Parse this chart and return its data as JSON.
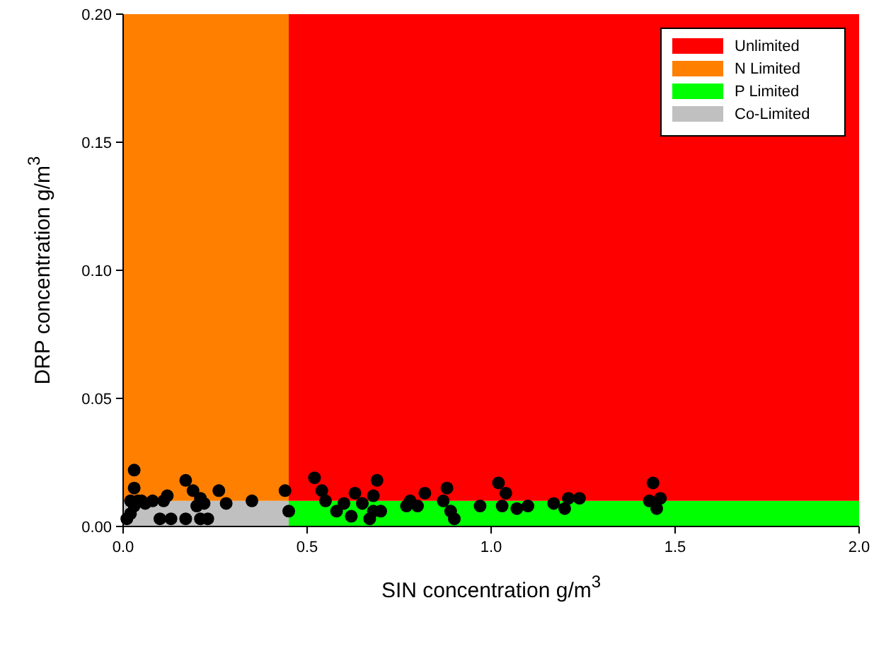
{
  "chart_data": {
    "type": "scatter",
    "xlabel": "SIN concentration g/m$^{3}$",
    "ylabel": "DRP concentration g/m$^{3}$",
    "xlim": [
      0,
      2
    ],
    "xticks": [
      {
        "value": 0,
        "label": "0.0"
      },
      {
        "value": 0.5,
        "label": "0.5"
      },
      {
        "value": 1,
        "label": "1.0"
      },
      {
        "value": 1.5,
        "label": "1.5"
      },
      {
        "value": 2,
        "label": "2.0"
      }
    ],
    "ylim": [
      0,
      0.2
    ],
    "yticks": [
      {
        "value": 0,
        "label": "0.00"
      },
      {
        "value": 0.05,
        "label": "0.05"
      },
      {
        "value": 0.1,
        "label": "0.10"
      },
      {
        "value": 0.15,
        "label": "0.15"
      },
      {
        "value": 0.2,
        "label": "0.20"
      }
    ],
    "x": [
      0,
      0.45,
      0.45,
      2
    ],
    "grid": false,
    "legend": "top right",
    "marker": "circle",
    "stacked": true,
    "series": [
      {
        "type": "area",
        "name": "Co-Limited",
        "color": "#c0c0c0",
        "marker": "none",
        "values": [
          0.01,
          0.01,
          null,
          null
        ]
      },
      {
        "type": "area",
        "name": "P Limited",
        "color": "#00ff00",
        "marker": "none",
        "values": [
          null,
          null,
          0.01,
          0.01
        ]
      },
      {
        "type": "area",
        "name": "N Limited",
        "color": "#ff8000",
        "marker": "none",
        "values": [
          0.19,
          0.19,
          null,
          null
        ]
      },
      {
        "type": "area",
        "name": "Unlimited",
        "color": "#ff0000",
        "marker": "none",
        "values": [
          null,
          null,
          0.19,
          0.19
        ]
      },
      {
        "color": "#000000",
        "x": [
          0.01,
          0.02,
          0.03,
          0.03,
          0.03,
          0.05,
          0.06,
          0.08,
          0.1,
          0.11,
          0.12,
          0.13,
          0.17,
          0.17,
          0.19,
          0.2,
          0.21,
          0.22,
          0.23,
          0.26,
          0.28,
          0.35,
          0.44,
          0.45,
          0.04,
          0.02,
          0.21,
          0.52,
          0.54,
          0.55,
          0.58,
          0.6,
          0.62,
          0.63,
          0.65,
          0.67,
          0.68,
          0.69,
          0.7,
          0.68,
          0.77,
          0.78,
          0.8,
          0.82,
          0.87,
          0.88,
          0.89,
          0.9,
          0.97,
          1.02,
          1.03,
          1.04,
          1.07,
          1.1,
          1.17,
          1.2,
          1.21,
          1.24,
          1.43,
          1.44,
          1.45,
          1.46
        ],
        "values": [
          0.003,
          0.005,
          0.022,
          0.015,
          0.008,
          0.01,
          0.009,
          0.01,
          0.003,
          0.01,
          0.012,
          0.003,
          0.018,
          0.003,
          0.014,
          0.008,
          0.003,
          0.009,
          0.003,
          0.014,
          0.009,
          0.01,
          0.014,
          0.006,
          0.01,
          0.01,
          0.011,
          0.019,
          0.014,
          0.01,
          0.006,
          0.009,
          0.004,
          0.013,
          0.009,
          0.003,
          0.006,
          0.018,
          0.006,
          0.012,
          0.008,
          0.01,
          0.008,
          0.013,
          0.01,
          0.015,
          0.006,
          0.003,
          0.008,
          0.017,
          0.008,
          0.013,
          0.007,
          0.008,
          0.009,
          0.007,
          0.011,
          0.011,
          0.01,
          0.017,
          0.007,
          0.011
        ]
      }
    ]
  }
}
